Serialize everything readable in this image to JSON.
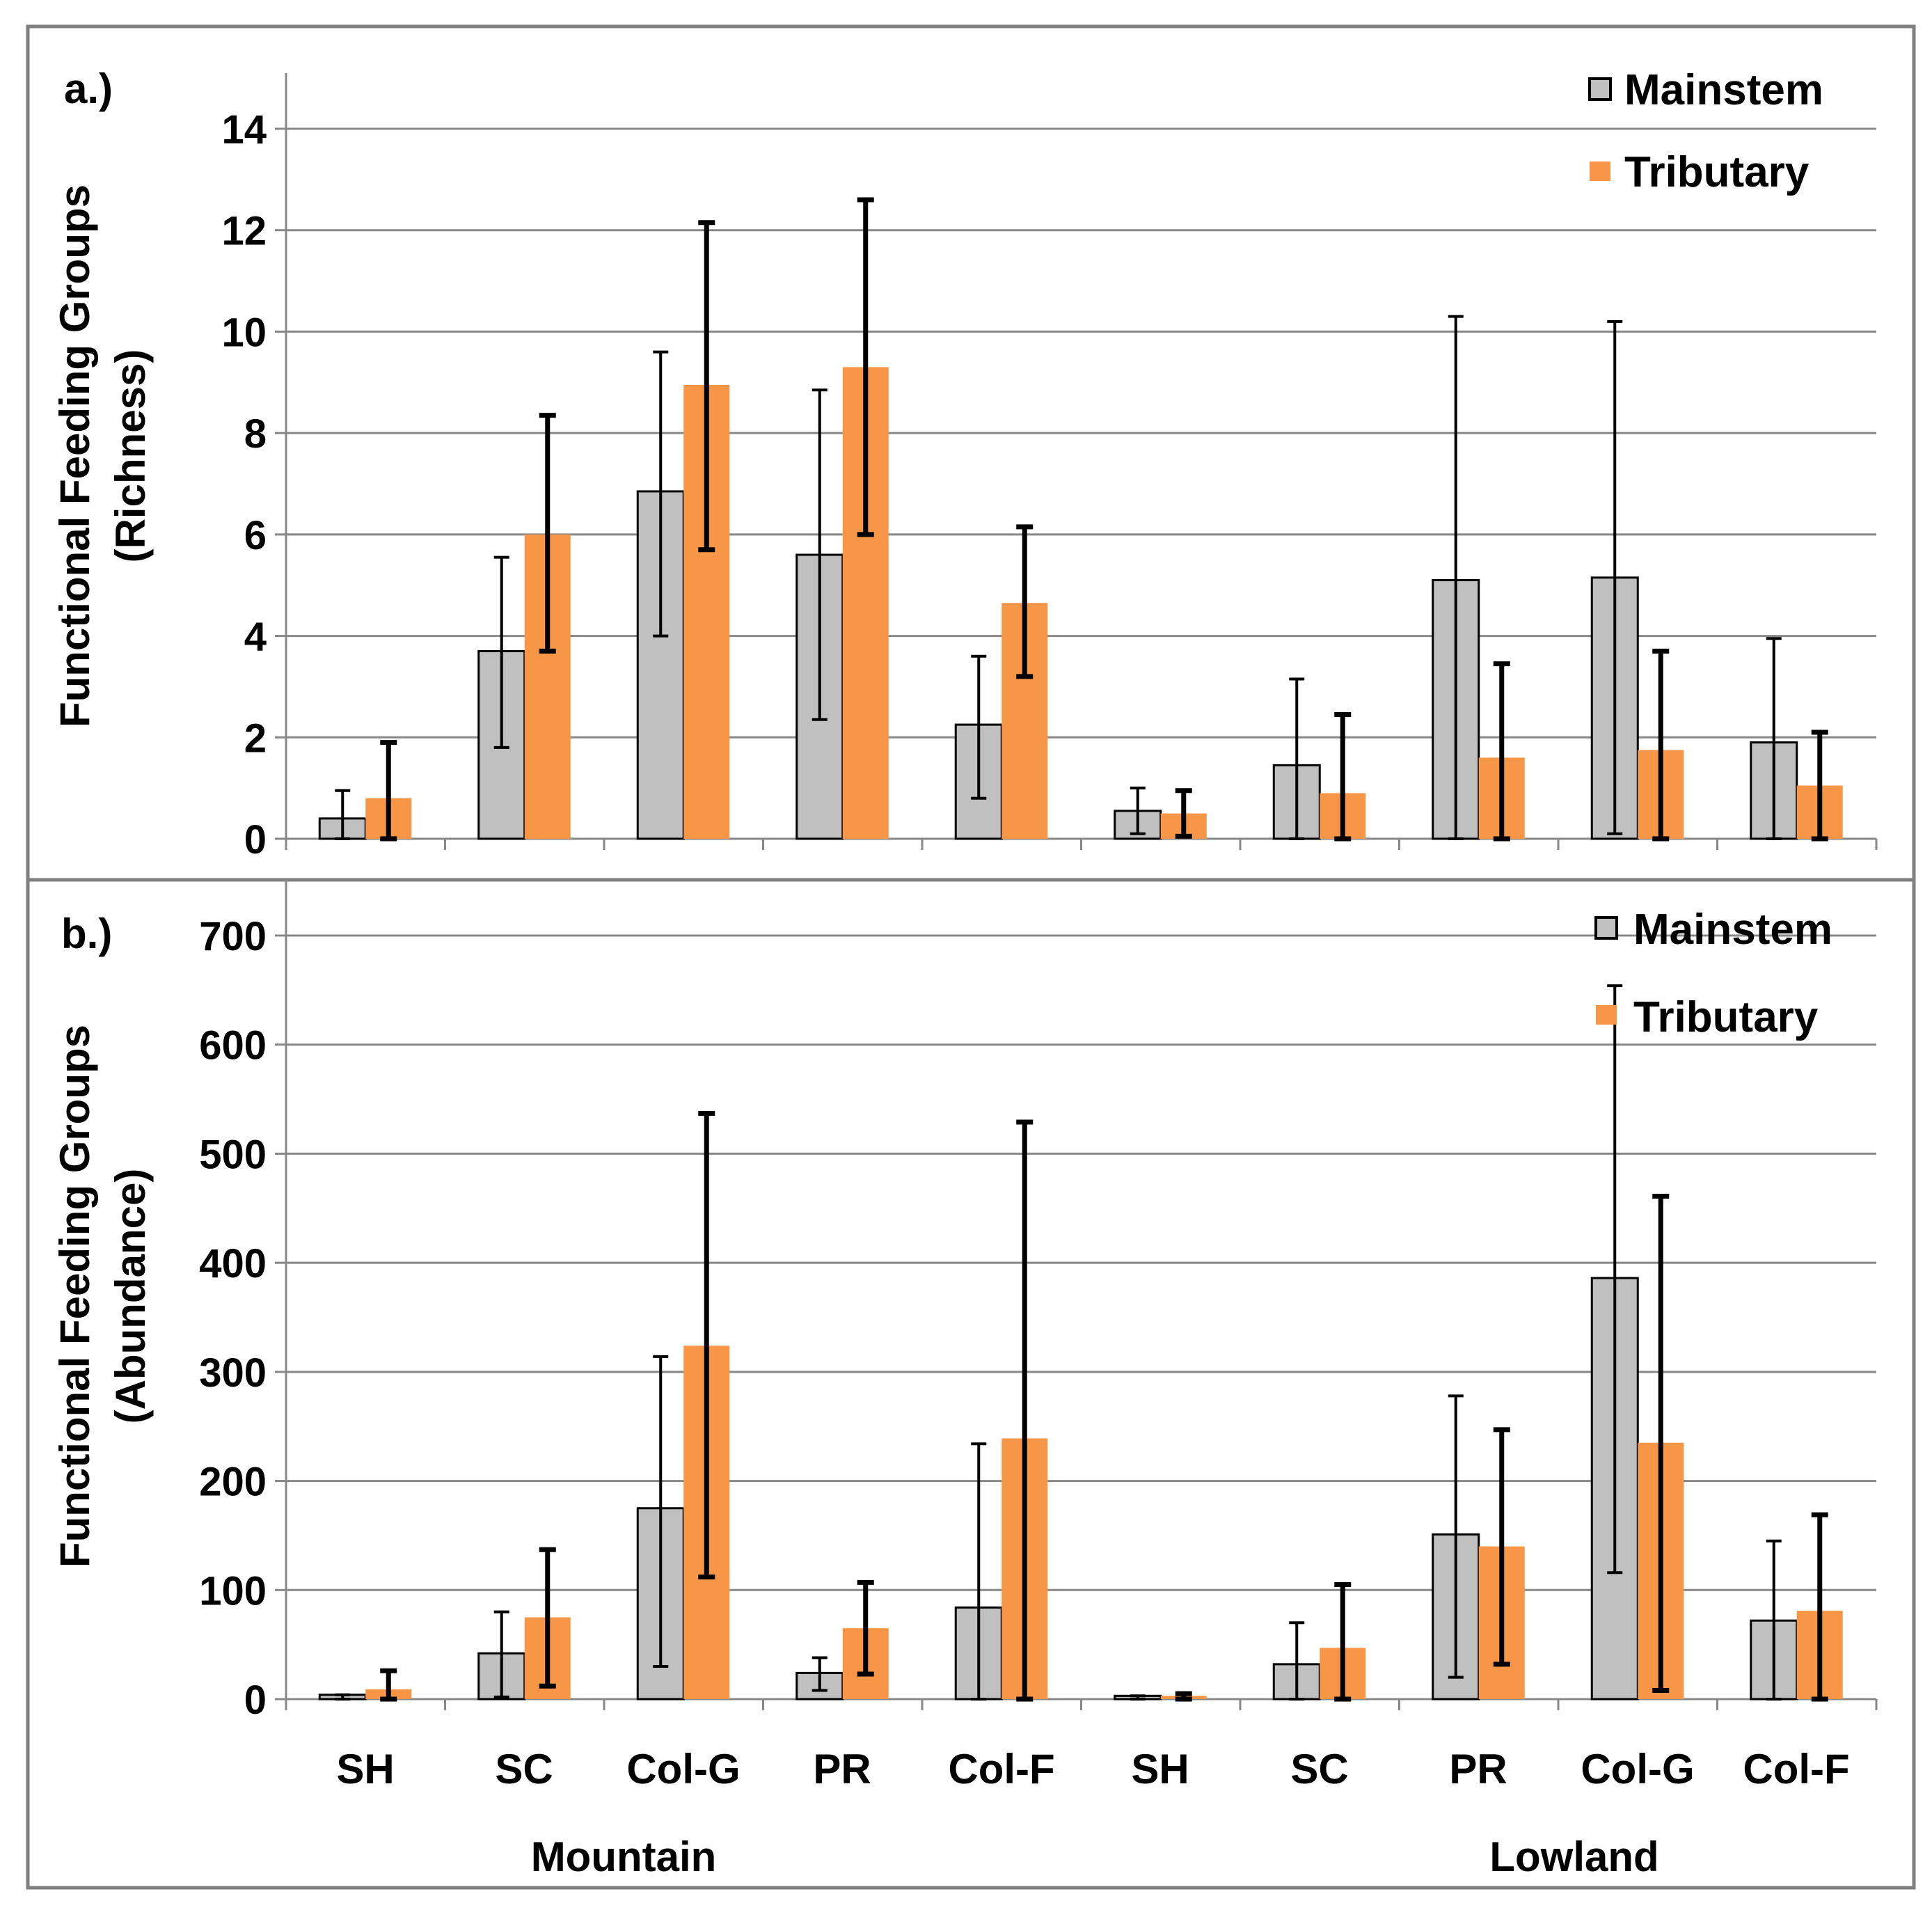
{
  "colors": {
    "mainstem": "#c0c0c0",
    "tributary": "#f79646",
    "grid": "#888888",
    "border": "#7f7f7f"
  },
  "x_axis": {
    "tick_labels": [
      "SH",
      "SC",
      "Col-G",
      "PR",
      "Col-F",
      "SH",
      "SC",
      "PR",
      "Col-G",
      "Col-F"
    ],
    "group_labels": [
      "Mountain",
      "Lowland"
    ]
  },
  "chart_data": [
    {
      "type": "bar",
      "panel_label": "a.)",
      "ylabel": [
        "Functional Feeding Groups",
        "(Richness)"
      ],
      "ylim": [
        0,
        14
      ],
      "yticks": [
        0,
        2,
        4,
        6,
        8,
        10,
        12,
        14
      ],
      "grid": true,
      "legend": "top-right",
      "categories": [
        "SH",
        "SC",
        "Col-G",
        "PR",
        "Col-F",
        "SH",
        "SC",
        "PR",
        "Col-G",
        "Col-F"
      ],
      "groups": [
        {
          "name": "Mountain",
          "categories": 5
        },
        {
          "name": "Lowland",
          "categories": 5
        }
      ],
      "series": [
        {
          "name": "Mainstem",
          "values": [
            0.4,
            3.7,
            6.85,
            5.6,
            2.25,
            0.55,
            1.45,
            5.1,
            5.15,
            1.9
          ],
          "err_low": [
            0.0,
            1.8,
            4.0,
            2.35,
            0.8,
            0.1,
            0.0,
            0.0,
            0.1,
            0.0
          ],
          "err_high": [
            0.95,
            5.55,
            9.6,
            8.85,
            3.6,
            1.0,
            3.15,
            10.3,
            10.2,
            3.95
          ]
        },
        {
          "name": "Tributary",
          "values": [
            0.8,
            6.0,
            8.95,
            9.3,
            4.65,
            0.5,
            0.9,
            1.6,
            1.75,
            1.05
          ],
          "err_low": [
            0.0,
            3.7,
            5.7,
            6.0,
            3.2,
            0.05,
            0.0,
            0.0,
            0.0,
            0.0
          ],
          "err_high": [
            1.9,
            8.35,
            12.15,
            12.6,
            6.15,
            0.95,
            2.45,
            3.45,
            3.7,
            2.1
          ]
        }
      ]
    },
    {
      "type": "bar",
      "panel_label": "b.)",
      "ylabel": [
        "Functional Feeding Groups",
        "(Abundance)"
      ],
      "ylim": [
        0,
        700
      ],
      "yticks": [
        0,
        100,
        200,
        300,
        400,
        500,
        600,
        700
      ],
      "grid": true,
      "legend": "top-right",
      "categories": [
        "SH",
        "SC",
        "Col-G",
        "PR",
        "Col-F",
        "SH",
        "SC",
        "PR",
        "Col-G",
        "Col-F"
      ],
      "groups": [
        {
          "name": "Mountain",
          "categories": 5
        },
        {
          "name": "Lowland",
          "categories": 5
        }
      ],
      "series": [
        {
          "name": "Mainstem",
          "values": [
            4,
            42,
            175,
            24,
            84,
            3,
            32,
            151,
            386,
            72
          ],
          "err_low": [
            0,
            2,
            30,
            8,
            0,
            0,
            0,
            20,
            116,
            0
          ],
          "err_high": [
            4,
            80,
            314,
            38,
            234,
            3,
            70,
            278,
            654,
            145
          ]
        },
        {
          "name": "Tributary",
          "values": [
            9,
            75,
            324,
            65,
            239,
            3,
            47,
            140,
            235,
            81
          ],
          "err_low": [
            0,
            12,
            112,
            23,
            0,
            0,
            0,
            32,
            8,
            0
          ],
          "err_high": [
            26,
            137,
            537,
            107,
            529,
            5,
            105,
            247,
            461,
            169
          ]
        }
      ]
    }
  ]
}
